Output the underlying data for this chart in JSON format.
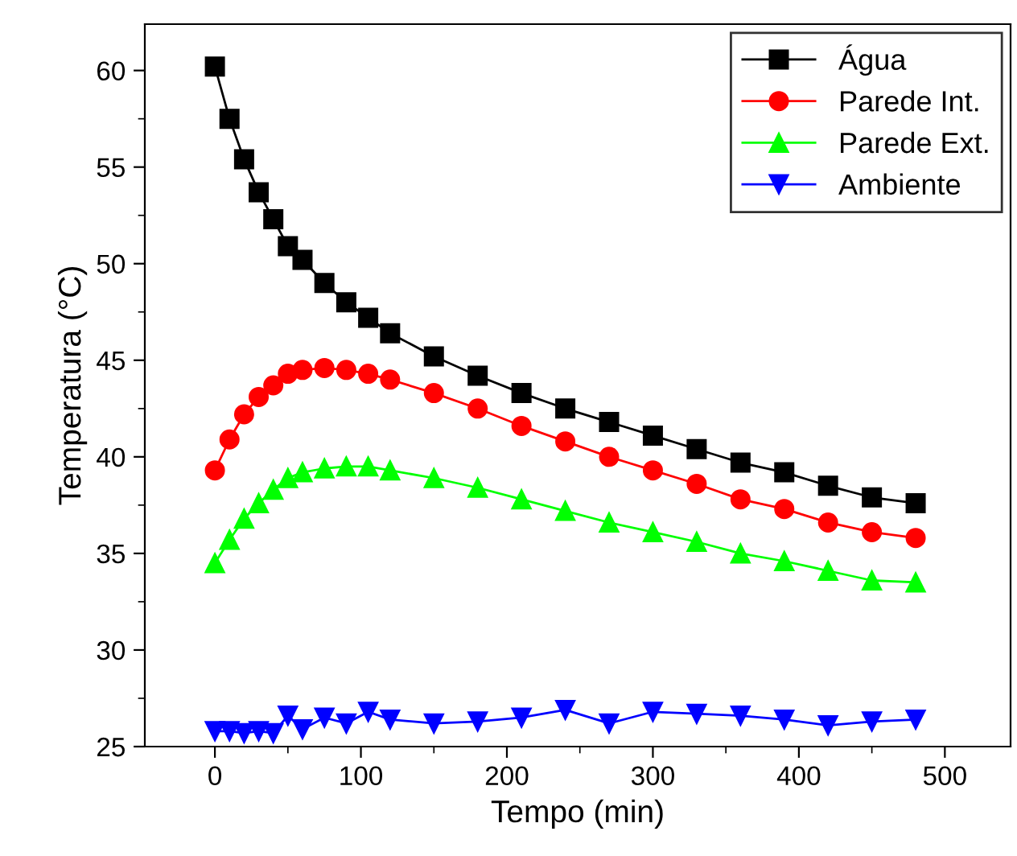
{
  "chart_data": {
    "type": "line",
    "xlabel": "Tempo (min)",
    "ylabel": "Temperatura (°C)",
    "x": [
      0,
      10,
      20,
      30,
      40,
      50,
      60,
      75,
      90,
      105,
      120,
      150,
      180,
      210,
      240,
      270,
      300,
      330,
      360,
      390,
      420,
      450,
      480
    ],
    "series": [
      {
        "name": "Água",
        "color": "#000000",
        "marker": "square",
        "values": [
          60.2,
          57.5,
          55.4,
          53.7,
          52.3,
          50.9,
          50.2,
          49.0,
          48.0,
          47.2,
          46.4,
          45.2,
          44.2,
          43.3,
          42.5,
          41.8,
          41.1,
          40.4,
          39.7,
          39.2,
          38.5,
          37.9,
          37.6
        ]
      },
      {
        "name": "Parede Int.",
        "color": "#ff0000",
        "marker": "circle",
        "values": [
          39.3,
          40.9,
          42.2,
          43.1,
          43.7,
          44.3,
          44.5,
          44.6,
          44.5,
          44.3,
          44.0,
          43.3,
          42.5,
          41.6,
          40.8,
          40.0,
          39.3,
          38.6,
          37.8,
          37.3,
          36.6,
          36.1,
          35.8
        ]
      },
      {
        "name": "Parede Ext.",
        "color": "#00ff00",
        "marker": "triangle",
        "values": [
          34.5,
          35.7,
          36.8,
          37.6,
          38.3,
          38.9,
          39.2,
          39.4,
          39.5,
          39.5,
          39.3,
          38.9,
          38.4,
          37.8,
          37.2,
          36.6,
          36.1,
          35.6,
          35.0,
          34.6,
          34.1,
          33.6,
          33.5
        ]
      },
      {
        "name": "Ambiente",
        "color": "#0000ff",
        "marker": "triangle_down",
        "values": [
          25.8,
          25.8,
          25.7,
          25.8,
          25.7,
          26.6,
          25.9,
          26.5,
          26.2,
          26.8,
          26.4,
          26.2,
          26.3,
          26.5,
          26.9,
          26.2,
          26.8,
          26.7,
          26.6,
          26.4,
          26.1,
          26.3,
          26.4
        ]
      }
    ],
    "xlim": [
      -48,
      545
    ],
    "ylim": [
      25,
      62.4
    ],
    "xticks": [
      0,
      100,
      200,
      300,
      400,
      500
    ],
    "yticks": [
      25,
      30,
      35,
      40,
      45,
      50,
      55,
      60
    ],
    "grid": false,
    "legend": "top right",
    "line_style": "solid"
  }
}
